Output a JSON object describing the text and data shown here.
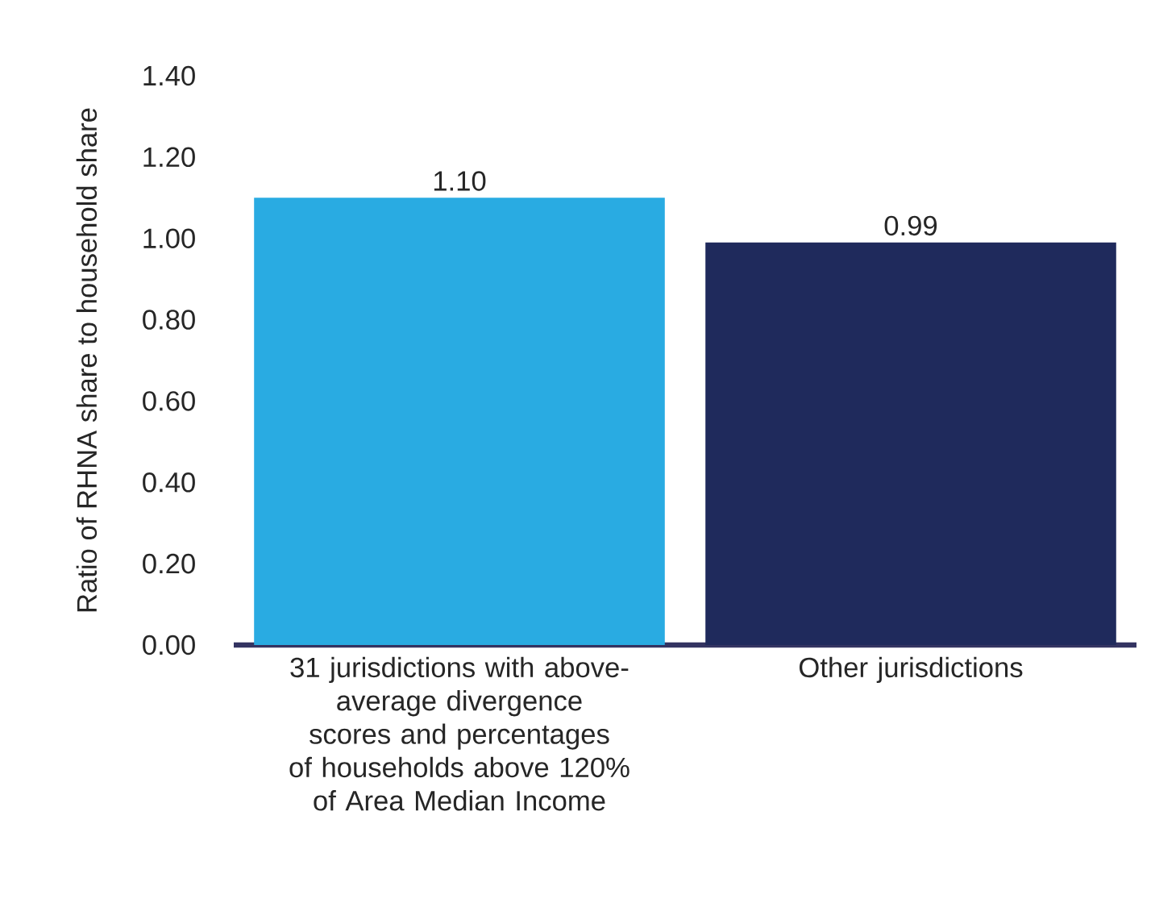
{
  "chart_data": {
    "type": "bar",
    "ylabel": "Ratio of RHNA share to household share",
    "categories": [
      "31 jurisdictions with above-average divergence scores and percentages of households above 120% of Area Median Income",
      "Other jurisdictions"
    ],
    "values": [
      1.1,
      0.99
    ],
    "colors": [
      "#29abe2",
      "#1f2a5c"
    ],
    "value_labels": [
      "1.10",
      "0.99"
    ],
    "ylim": [
      0,
      1.4
    ],
    "yticks": [
      {
        "value": 0,
        "label": "0.00"
      },
      {
        "value": 0.2,
        "label": "0.20"
      },
      {
        "value": 0.4,
        "label": "0.40"
      },
      {
        "value": 0.6,
        "label": "0.60"
      },
      {
        "value": 0.8,
        "label": "0.80"
      },
      {
        "value": 1.0,
        "label": "1.00"
      },
      {
        "value": 1.2,
        "label": "1.20"
      },
      {
        "value": 1.4,
        "label": "1.40"
      }
    ]
  }
}
